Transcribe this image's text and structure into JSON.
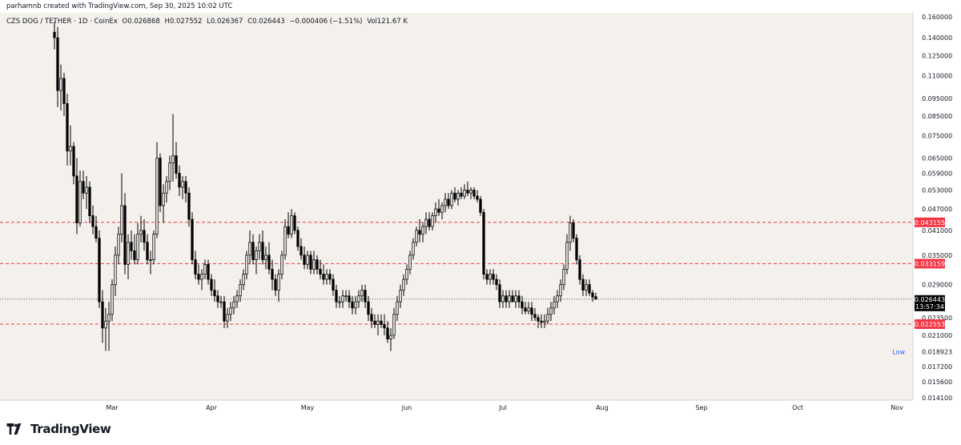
{
  "header": {
    "credit": "parhamnb created with TradingView.com, Sep 30, 2025 10:02 UTC"
  },
  "legend": {
    "symbol": "CZS DOG / TETHER · 1D · CoinEx",
    "open": "O0.026868",
    "high": "H0.027552",
    "low": "L0.026367",
    "close": "C0.026443",
    "change": "−0.000406 (−1.51%)",
    "volume": "Vol121.67 K"
  },
  "footer": {
    "brand": "TradingView"
  },
  "colors": {
    "background": "#f4f1ed",
    "candle": "#000000",
    "level_line": "#f23645",
    "last_price_bg": "#000000",
    "low_label": "#2962ff"
  },
  "chart_data": {
    "type": "candlestick",
    "title": "CZS DOG / TETHER · 1D · CoinEx",
    "scale": "log",
    "ylim": [
      0.0141,
      0.16
    ],
    "y_ticks": [
      "0.160000",
      "0.140000",
      "0.125000",
      "0.110000",
      "0.095000",
      "0.085000",
      "0.075000",
      "0.065000",
      "0.059000",
      "0.053000",
      "0.047000",
      "0.041000",
      "0.035000",
      "0.029000",
      "0.023500",
      "0.021000",
      "0.018923",
      "0.017200",
      "0.015600",
      "0.014100"
    ],
    "x_ticks": [
      {
        "label": "Mar",
        "date": "2025-03-01"
      },
      {
        "label": "Apr",
        "date": "2025-04-01"
      },
      {
        "label": "May",
        "date": "2025-05-01"
      },
      {
        "label": "Jun",
        "date": "2025-06-01"
      },
      {
        "label": "Jul",
        "date": "2025-07-01"
      },
      {
        "label": "Aug",
        "date": "2025-08-01"
      },
      {
        "label": "Sep",
        "date": "2025-09-01"
      },
      {
        "label": "Oct",
        "date": "2025-10-01"
      },
      {
        "label": "Nov",
        "date": "2025-11-01"
      }
    ],
    "horizontal_levels": [
      {
        "value": 0.043155,
        "label": "0.043155"
      },
      {
        "value": 0.033159,
        "label": "0.033159"
      },
      {
        "value": 0.022553,
        "label": "0.022553"
      }
    ],
    "last_price": {
      "value": 0.026443,
      "label": "0.026443",
      "countdown": "13:57:34"
    },
    "low_marker": {
      "label": "Low",
      "value": "0.018923"
    },
    "start_date": "2025-02-11",
    "candles": [
      [
        0.145,
        0.155,
        0.13,
        0.14
      ],
      [
        0.14,
        0.15,
        0.09,
        0.1
      ],
      [
        0.1,
        0.118,
        0.088,
        0.108
      ],
      [
        0.108,
        0.112,
        0.085,
        0.092
      ],
      [
        0.092,
        0.098,
        0.062,
        0.068
      ],
      [
        0.068,
        0.08,
        0.062,
        0.07
      ],
      [
        0.07,
        0.072,
        0.055,
        0.058
      ],
      [
        0.058,
        0.065,
        0.04,
        0.043
      ],
      [
        0.043,
        0.06,
        0.042,
        0.056
      ],
      [
        0.056,
        0.06,
        0.05,
        0.052
      ],
      [
        0.052,
        0.058,
        0.047,
        0.054
      ],
      [
        0.054,
        0.056,
        0.043,
        0.045
      ],
      [
        0.045,
        0.048,
        0.04,
        0.042
      ],
      [
        0.042,
        0.045,
        0.038,
        0.039
      ],
      [
        0.039,
        0.041,
        0.025,
        0.026
      ],
      [
        0.026,
        0.028,
        0.02,
        0.022
      ],
      [
        0.022,
        0.025,
        0.019,
        0.023
      ],
      [
        0.023,
        0.026,
        0.019,
        0.024
      ],
      [
        0.024,
        0.03,
        0.023,
        0.029
      ],
      [
        0.029,
        0.037,
        0.027,
        0.035
      ],
      [
        0.035,
        0.042,
        0.033,
        0.04
      ],
      [
        0.04,
        0.059,
        0.038,
        0.048
      ],
      [
        0.048,
        0.052,
        0.031,
        0.033
      ],
      [
        0.033,
        0.04,
        0.03,
        0.038
      ],
      [
        0.038,
        0.041,
        0.034,
        0.036
      ],
      [
        0.036,
        0.04,
        0.033,
        0.034
      ],
      [
        0.034,
        0.043,
        0.033,
        0.04
      ],
      [
        0.04,
        0.045,
        0.038,
        0.041
      ],
      [
        0.041,
        0.044,
        0.036,
        0.038
      ],
      [
        0.038,
        0.04,
        0.033,
        0.034
      ],
      [
        0.034,
        0.036,
        0.031,
        0.034
      ],
      [
        0.034,
        0.041,
        0.033,
        0.04
      ],
      [
        0.04,
        0.072,
        0.039,
        0.065
      ],
      [
        0.065,
        0.067,
        0.046,
        0.048
      ],
      [
        0.048,
        0.055,
        0.043,
        0.052
      ],
      [
        0.052,
        0.058,
        0.049,
        0.056
      ],
      [
        0.056,
        0.066,
        0.053,
        0.063
      ],
      [
        0.063,
        0.086,
        0.056,
        0.066
      ],
      [
        0.066,
        0.072,
        0.057,
        0.059
      ],
      [
        0.059,
        0.062,
        0.051,
        0.054
      ],
      [
        0.054,
        0.058,
        0.05,
        0.056
      ],
      [
        0.056,
        0.058,
        0.049,
        0.052
      ],
      [
        0.052,
        0.054,
        0.042,
        0.044
      ],
      [
        0.044,
        0.046,
        0.033,
        0.034
      ],
      [
        0.034,
        0.036,
        0.03,
        0.031
      ],
      [
        0.031,
        0.033,
        0.029,
        0.03
      ],
      [
        0.03,
        0.032,
        0.028,
        0.031
      ],
      [
        0.031,
        0.034,
        0.03,
        0.033
      ],
      [
        0.033,
        0.034,
        0.029,
        0.03
      ],
      [
        0.03,
        0.031,
        0.027,
        0.028
      ],
      [
        0.028,
        0.03,
        0.026,
        0.027
      ],
      [
        0.027,
        0.028,
        0.025,
        0.026
      ],
      [
        0.026,
        0.027,
        0.025,
        0.026
      ],
      [
        0.026,
        0.027,
        0.022,
        0.023
      ],
      [
        0.023,
        0.025,
        0.022,
        0.024
      ],
      [
        0.024,
        0.026,
        0.023,
        0.025
      ],
      [
        0.025,
        0.027,
        0.024,
        0.026
      ],
      [
        0.026,
        0.028,
        0.025,
        0.027
      ],
      [
        0.027,
        0.03,
        0.026,
        0.029
      ],
      [
        0.029,
        0.032,
        0.028,
        0.031
      ],
      [
        0.031,
        0.036,
        0.03,
        0.035
      ],
      [
        0.035,
        0.041,
        0.033,
        0.038
      ],
      [
        0.038,
        0.04,
        0.033,
        0.034
      ],
      [
        0.034,
        0.037,
        0.031,
        0.036
      ],
      [
        0.036,
        0.04,
        0.034,
        0.038
      ],
      [
        0.038,
        0.041,
        0.033,
        0.034
      ],
      [
        0.034,
        0.037,
        0.032,
        0.035
      ],
      [
        0.035,
        0.038,
        0.031,
        0.032
      ],
      [
        0.032,
        0.034,
        0.028,
        0.03
      ],
      [
        0.03,
        0.031,
        0.027,
        0.028
      ],
      [
        0.028,
        0.032,
        0.026,
        0.031
      ],
      [
        0.031,
        0.036,
        0.03,
        0.035
      ],
      [
        0.035,
        0.044,
        0.034,
        0.042
      ],
      [
        0.042,
        0.046,
        0.039,
        0.04
      ],
      [
        0.04,
        0.047,
        0.039,
        0.045
      ],
      [
        0.045,
        0.046,
        0.04,
        0.041
      ],
      [
        0.041,
        0.042,
        0.036,
        0.037
      ],
      [
        0.037,
        0.039,
        0.034,
        0.035
      ],
      [
        0.035,
        0.037,
        0.032,
        0.033
      ],
      [
        0.033,
        0.036,
        0.032,
        0.035
      ],
      [
        0.035,
        0.036,
        0.031,
        0.032
      ],
      [
        0.032,
        0.036,
        0.031,
        0.034
      ],
      [
        0.034,
        0.035,
        0.031,
        0.032
      ],
      [
        0.032,
        0.034,
        0.03,
        0.031
      ],
      [
        0.031,
        0.033,
        0.029,
        0.03
      ],
      [
        0.03,
        0.032,
        0.029,
        0.031
      ],
      [
        0.031,
        0.032,
        0.029,
        0.03
      ],
      [
        0.03,
        0.031,
        0.027,
        0.028
      ],
      [
        0.028,
        0.029,
        0.025,
        0.026
      ],
      [
        0.026,
        0.027,
        0.025,
        0.026
      ],
      [
        0.026,
        0.028,
        0.025,
        0.027
      ],
      [
        0.027,
        0.028,
        0.026,
        0.027
      ],
      [
        0.027,
        0.028,
        0.025,
        0.026
      ],
      [
        0.026,
        0.027,
        0.024,
        0.025
      ],
      [
        0.025,
        0.027,
        0.024,
        0.026
      ],
      [
        0.026,
        0.028,
        0.025,
        0.027
      ],
      [
        0.027,
        0.029,
        0.026,
        0.028
      ],
      [
        0.028,
        0.029,
        0.025,
        0.026
      ],
      [
        0.026,
        0.027,
        0.023,
        0.024
      ],
      [
        0.024,
        0.025,
        0.022,
        0.023
      ],
      [
        0.023,
        0.024,
        0.022,
        0.0225
      ],
      [
        0.0225,
        0.024,
        0.021,
        0.023
      ],
      [
        0.023,
        0.024,
        0.022,
        0.0225
      ],
      [
        0.0225,
        0.024,
        0.021,
        0.022
      ],
      [
        0.022,
        0.023,
        0.02,
        0.0205
      ],
      [
        0.0205,
        0.022,
        0.019,
        0.021
      ],
      [
        0.021,
        0.025,
        0.0205,
        0.024
      ],
      [
        0.024,
        0.027,
        0.023,
        0.026
      ],
      [
        0.026,
        0.029,
        0.025,
        0.028
      ],
      [
        0.028,
        0.031,
        0.027,
        0.03
      ],
      [
        0.03,
        0.033,
        0.029,
        0.032
      ],
      [
        0.032,
        0.036,
        0.031,
        0.035
      ],
      [
        0.035,
        0.039,
        0.034,
        0.038
      ],
      [
        0.038,
        0.042,
        0.037,
        0.041
      ],
      [
        0.041,
        0.044,
        0.038,
        0.04
      ],
      [
        0.04,
        0.043,
        0.038,
        0.042
      ],
      [
        0.042,
        0.046,
        0.04,
        0.044
      ],
      [
        0.044,
        0.046,
        0.041,
        0.042
      ],
      [
        0.042,
        0.046,
        0.041,
        0.045
      ],
      [
        0.045,
        0.049,
        0.043,
        0.047
      ],
      [
        0.047,
        0.05,
        0.045,
        0.046
      ],
      [
        0.046,
        0.049,
        0.044,
        0.048
      ],
      [
        0.048,
        0.052,
        0.046,
        0.05
      ],
      [
        0.05,
        0.052,
        0.047,
        0.048
      ],
      [
        0.048,
        0.053,
        0.047,
        0.052
      ],
      [
        0.052,
        0.054,
        0.049,
        0.05
      ],
      [
        0.05,
        0.053,
        0.048,
        0.052
      ],
      [
        0.052,
        0.054,
        0.05,
        0.051
      ],
      [
        0.051,
        0.055,
        0.05,
        0.053
      ],
      [
        0.053,
        0.056,
        0.051,
        0.052
      ],
      [
        0.052,
        0.054,
        0.05,
        0.053
      ],
      [
        0.053,
        0.054,
        0.05,
        0.051
      ],
      [
        0.051,
        0.053,
        0.049,
        0.05
      ],
      [
        0.05,
        0.051,
        0.045,
        0.046
      ],
      [
        0.046,
        0.047,
        0.03,
        0.031
      ],
      [
        0.031,
        0.032,
        0.029,
        0.03
      ],
      [
        0.03,
        0.032,
        0.029,
        0.031
      ],
      [
        0.031,
        0.032,
        0.029,
        0.03
      ],
      [
        0.03,
        0.031,
        0.028,
        0.029
      ],
      [
        0.029,
        0.03,
        0.025,
        0.026
      ],
      [
        0.026,
        0.028,
        0.025,
        0.027
      ],
      [
        0.027,
        0.028,
        0.025,
        0.026
      ],
      [
        0.026,
        0.028,
        0.025,
        0.027
      ],
      [
        0.027,
        0.028,
        0.026,
        0.026
      ],
      [
        0.026,
        0.028,
        0.025,
        0.027
      ],
      [
        0.027,
        0.028,
        0.025,
        0.026
      ],
      [
        0.026,
        0.027,
        0.024,
        0.025
      ],
      [
        0.025,
        0.026,
        0.024,
        0.0245
      ],
      [
        0.0245,
        0.026,
        0.024,
        0.025
      ],
      [
        0.025,
        0.026,
        0.023,
        0.024
      ],
      [
        0.024,
        0.025,
        0.023,
        0.0235
      ],
      [
        0.0235,
        0.024,
        0.022,
        0.023
      ],
      [
        0.023,
        0.024,
        0.022,
        0.0228
      ],
      [
        0.0228,
        0.024,
        0.022,
        0.023
      ],
      [
        0.023,
        0.025,
        0.0225,
        0.024
      ],
      [
        0.024,
        0.026,
        0.023,
        0.025
      ],
      [
        0.025,
        0.027,
        0.024,
        0.026
      ],
      [
        0.026,
        0.028,
        0.025,
        0.027
      ],
      [
        0.027,
        0.03,
        0.026,
        0.029
      ],
      [
        0.029,
        0.033,
        0.028,
        0.032
      ],
      [
        0.032,
        0.04,
        0.031,
        0.038
      ],
      [
        0.038,
        0.045,
        0.036,
        0.043
      ],
      [
        0.043,
        0.044,
        0.038,
        0.039
      ],
      [
        0.039,
        0.04,
        0.033,
        0.034
      ],
      [
        0.034,
        0.035,
        0.029,
        0.03
      ],
      [
        0.03,
        0.031,
        0.027,
        0.028
      ],
      [
        0.028,
        0.03,
        0.027,
        0.029
      ],
      [
        0.029,
        0.03,
        0.027,
        0.0275
      ],
      [
        0.0275,
        0.028,
        0.026,
        0.0268
      ],
      [
        0.026868,
        0.027552,
        0.026367,
        0.026443
      ]
    ]
  }
}
